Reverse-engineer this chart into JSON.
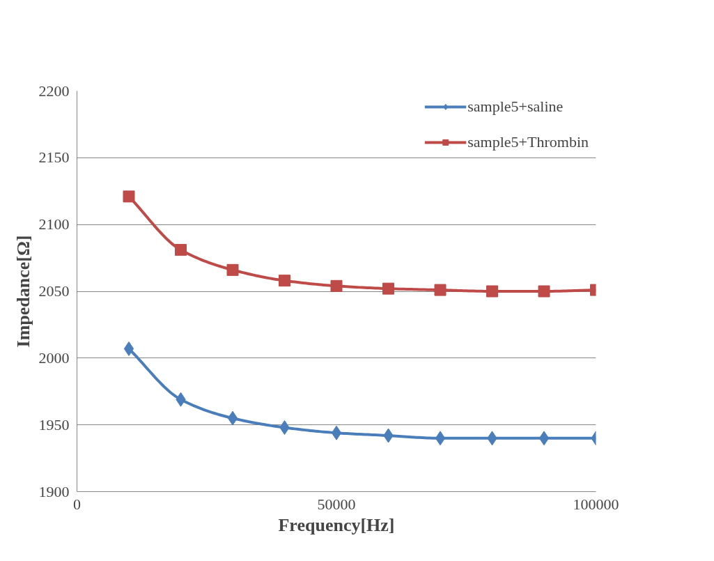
{
  "chart_data": {
    "type": "line",
    "xlabel": "Frequency[Hz]",
    "ylabel": "Impedance[Ω]",
    "x": [
      10000,
      20000,
      30000,
      40000,
      50000,
      60000,
      70000,
      80000,
      90000,
      100000
    ],
    "series": [
      {
        "name": "sample5+saline",
        "color": "#4a7ebb",
        "marker": "diamond",
        "values": [
          2007,
          1969,
          1955,
          1948,
          1944,
          1942,
          1940,
          1940,
          1940,
          1940
        ]
      },
      {
        "name": "sample5+Thrombin",
        "color": "#be4b48",
        "marker": "square",
        "values": [
          2121,
          2081,
          2066,
          2058,
          2054,
          2052,
          2051,
          2050,
          2050,
          2051
        ]
      }
    ],
    "xlim": [
      0,
      100000
    ],
    "xticks": [
      0,
      50000,
      100000
    ],
    "ylim": [
      1900,
      2200
    ],
    "yticks": [
      1900,
      1950,
      2000,
      2050,
      2100,
      2150,
      2200
    ],
    "grid": "y",
    "legend": "top right",
    "line_style": "solid"
  }
}
